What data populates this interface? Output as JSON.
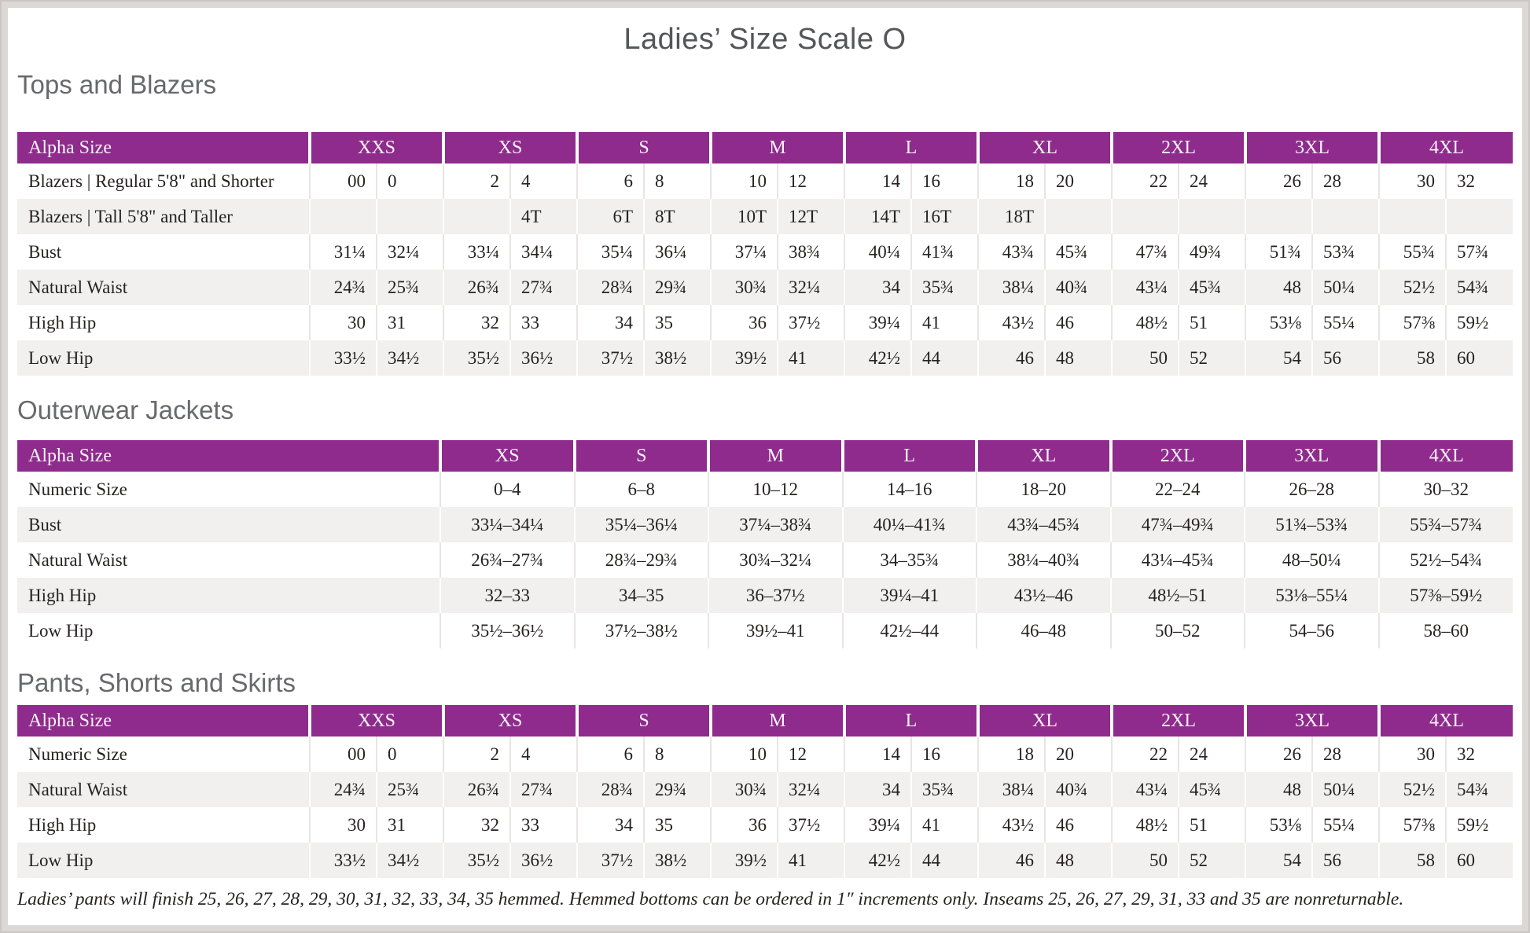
{
  "title": "Ladies’ Size Scale O",
  "footnote": "Ladies’ pants will finish 25, 26, 27, 28, 29, 30, 31, 32, 33, 34, 35 hemmed. Hemmed bottoms can be ordered in 1″ increments only. Inseams 25, 26, 27, 29, 31, 33 and 35 are nonreturnable.",
  "colors": {
    "accent_purple": "#8e2b8c",
    "stripe_gray": "#f2f0ee",
    "header_text": "#fbf3fa",
    "body_text": "#262221",
    "heading_gray": "#68696c",
    "title_gray": "#55565a",
    "frame_gray": "#dbd8d6"
  },
  "tables": [
    {
      "heading": "Tops and Blazers",
      "label_header": "Alpha Size",
      "paired": true,
      "sizes": [
        "XXS",
        "XS",
        "S",
        "M",
        "L",
        "XL",
        "2XL",
        "3XL",
        "4XL"
      ],
      "rows": [
        {
          "label": "Blazers | Regular 5'8\" and Shorter",
          "values": [
            [
              "00",
              "0"
            ],
            [
              "2",
              "4"
            ],
            [
              "6",
              "8"
            ],
            [
              "10",
              "12"
            ],
            [
              "14",
              "16"
            ],
            [
              "18",
              "20"
            ],
            [
              "22",
              "24"
            ],
            [
              "26",
              "28"
            ],
            [
              "30",
              "32"
            ]
          ]
        },
        {
          "label": "Blazers | Tall 5'8\" and Taller",
          "values": [
            [
              "",
              ""
            ],
            [
              "",
              "4T"
            ],
            [
              "6T",
              "8T"
            ],
            [
              "10T",
              "12T"
            ],
            [
              "14T",
              "16T"
            ],
            [
              "18T",
              ""
            ],
            [
              "",
              ""
            ],
            [
              "",
              ""
            ],
            [
              "",
              ""
            ]
          ]
        },
        {
          "label": "Bust",
          "values": [
            [
              "31¼",
              "32¼"
            ],
            [
              "33¼",
              "34¼"
            ],
            [
              "35¼",
              "36¼"
            ],
            [
              "37¼",
              "38¾"
            ],
            [
              "40¼",
              "41¾"
            ],
            [
              "43¾",
              "45¾"
            ],
            [
              "47¾",
              "49¾"
            ],
            [
              "51¾",
              "53¾"
            ],
            [
              "55¾",
              "57¾"
            ]
          ]
        },
        {
          "label": "Natural Waist",
          "values": [
            [
              "24¾",
              "25¾"
            ],
            [
              "26¾",
              "27¾"
            ],
            [
              "28¾",
              "29¾"
            ],
            [
              "30¾",
              "32¼"
            ],
            [
              "34",
              "35¾"
            ],
            [
              "38¼",
              "40¾"
            ],
            [
              "43¼",
              "45¾"
            ],
            [
              "48",
              "50¼"
            ],
            [
              "52½",
              "54¾"
            ]
          ]
        },
        {
          "label": "High Hip",
          "values": [
            [
              "30",
              "31"
            ],
            [
              "32",
              "33"
            ],
            [
              "34",
              "35"
            ],
            [
              "36",
              "37½"
            ],
            [
              "39¼",
              "41"
            ],
            [
              "43½",
              "46"
            ],
            [
              "48½",
              "51"
            ],
            [
              "53⅛",
              "55¼"
            ],
            [
              "57⅜",
              "59½"
            ]
          ]
        },
        {
          "label": "Low Hip",
          "values": [
            [
              "33½",
              "34½"
            ],
            [
              "35½",
              "36½"
            ],
            [
              "37½",
              "38½"
            ],
            [
              "39½",
              "41"
            ],
            [
              "42½",
              "44"
            ],
            [
              "46",
              "48"
            ],
            [
              "50",
              "52"
            ],
            [
              "54",
              "56"
            ],
            [
              "58",
              "60"
            ]
          ]
        }
      ]
    },
    {
      "heading": "Outerwear Jackets",
      "label_header": "Alpha Size",
      "paired": false,
      "sizes": [
        "XS",
        "S",
        "M",
        "L",
        "XL",
        "2XL",
        "3XL",
        "4XL"
      ],
      "rows": [
        {
          "label": "Numeric Size",
          "values": [
            "0–4",
            "6–8",
            "10–12",
            "14–16",
            "18–20",
            "22–24",
            "26–28",
            "30–32"
          ]
        },
        {
          "label": "Bust",
          "values": [
            "33¼–34¼",
            "35¼–36¼",
            "37¼–38¾",
            "40¼–41¾",
            "43¾–45¾",
            "47¾–49¾",
            "51¾–53¾",
            "55¾–57¾"
          ]
        },
        {
          "label": "Natural Waist",
          "values": [
            "26¾–27¾",
            "28¾–29¾",
            "30¾–32¼",
            "34–35¾",
            "38¼–40¾",
            "43¼–45¾",
            "48–50¼",
            "52½–54¾"
          ]
        },
        {
          "label": "High Hip",
          "values": [
            "32–33",
            "34–35",
            "36–37½",
            "39¼–41",
            "43½–46",
            "48½–51",
            "53⅛–55¼",
            "57⅜–59½"
          ]
        },
        {
          "label": "Low Hip",
          "values": [
            "35½–36½",
            "37½–38½",
            "39½–41",
            "42½–44",
            "46–48",
            "50–52",
            "54–56",
            "58–60"
          ]
        }
      ]
    },
    {
      "heading": "Pants, Shorts and Skirts",
      "label_header": "Alpha Size",
      "paired": true,
      "sizes": [
        "XXS",
        "XS",
        "S",
        "M",
        "L",
        "XL",
        "2XL",
        "3XL",
        "4XL"
      ],
      "rows": [
        {
          "label": "Numeric Size",
          "values": [
            [
              "00",
              "0"
            ],
            [
              "2",
              "4"
            ],
            [
              "6",
              "8"
            ],
            [
              "10",
              "12"
            ],
            [
              "14",
              "16"
            ],
            [
              "18",
              "20"
            ],
            [
              "22",
              "24"
            ],
            [
              "26",
              "28"
            ],
            [
              "30",
              "32"
            ]
          ]
        },
        {
          "label": "Natural Waist",
          "values": [
            [
              "24¾",
              "25¾"
            ],
            [
              "26¾",
              "27¾"
            ],
            [
              "28¾",
              "29¾"
            ],
            [
              "30¾",
              "32¼"
            ],
            [
              "34",
              "35¾"
            ],
            [
              "38¼",
              "40¾"
            ],
            [
              "43¼",
              "45¾"
            ],
            [
              "48",
              "50¼"
            ],
            [
              "52½",
              "54¾"
            ]
          ]
        },
        {
          "label": "High Hip",
          "values": [
            [
              "30",
              "31"
            ],
            [
              "32",
              "33"
            ],
            [
              "34",
              "35"
            ],
            [
              "36",
              "37½"
            ],
            [
              "39¼",
              "41"
            ],
            [
              "43½",
              "46"
            ],
            [
              "48½",
              "51"
            ],
            [
              "53⅛",
              "55¼"
            ],
            [
              "57⅜",
              "59½"
            ]
          ]
        },
        {
          "label": "Low Hip",
          "values": [
            [
              "33½",
              "34½"
            ],
            [
              "35½",
              "36½"
            ],
            [
              "37½",
              "38½"
            ],
            [
              "39½",
              "41"
            ],
            [
              "42½",
              "44"
            ],
            [
              "46",
              "48"
            ],
            [
              "50",
              "52"
            ],
            [
              "54",
              "56"
            ],
            [
              "58",
              "60"
            ]
          ]
        }
      ]
    }
  ]
}
